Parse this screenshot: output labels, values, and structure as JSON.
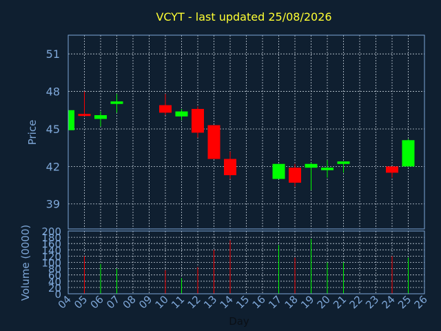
{
  "colors": {
    "background": "#0f1f30",
    "title": "#ffff33",
    "axis_text": "#7ea7d8",
    "frame": "#7ea7d8",
    "grid": "#c8d2dc",
    "up": "#00ff00",
    "down": "#ff0000"
  },
  "chart_data": {
    "type": "candlestick",
    "title": "VCYT - last updated 25/08/2026",
    "price_ylabel": "Price",
    "volume_ylabel": "Volume (0000)",
    "xlabel": "Day",
    "grid": true,
    "x_ticks": [
      "04",
      "05",
      "06",
      "07",
      "08",
      "09",
      "10",
      "11",
      "12",
      "13",
      "14",
      "15",
      "16",
      "17",
      "18",
      "19",
      "20",
      "21",
      "22",
      "23",
      "24",
      "25",
      "26"
    ],
    "price_ylim": [
      37.0,
      52.5
    ],
    "price_yticks": [
      "39",
      "42",
      "45",
      "48",
      "51"
    ],
    "volume_ylim": [
      0,
      200
    ],
    "volume_yticks": [
      "0",
      "20",
      "40",
      "60",
      "80",
      "100",
      "120",
      "140",
      "160",
      "180",
      "200"
    ],
    "candles": [
      {
        "day": "04",
        "open": 44.9,
        "high": 46.5,
        "low": 44.9,
        "close": 46.5,
        "volume": 0
      },
      {
        "day": "05",
        "open": 46.2,
        "high": 48.0,
        "low": 46.1,
        "close": 46.1,
        "volume": 120
      },
      {
        "day": "06",
        "open": 45.8,
        "high": 46.4,
        "low": 45.2,
        "close": 46.1,
        "volume": 95
      },
      {
        "day": "07",
        "open": 47.0,
        "high": 47.8,
        "low": 46.3,
        "close": 47.2,
        "volume": 80
      },
      {
        "day": "10",
        "open": 46.9,
        "high": 47.8,
        "low": 46.1,
        "close": 46.3,
        "volume": 75
      },
      {
        "day": "11",
        "open": 46.0,
        "high": 46.6,
        "low": 45.7,
        "close": 46.4,
        "volume": 50
      },
      {
        "day": "12",
        "open": 46.6,
        "high": 46.8,
        "low": 44.3,
        "close": 44.7,
        "volume": 85
      },
      {
        "day": "13",
        "open": 45.3,
        "high": 45.3,
        "low": 42.6,
        "close": 42.6,
        "volume": 140
      },
      {
        "day": "14",
        "open": 42.6,
        "high": 43.2,
        "low": 41.0,
        "close": 41.3,
        "volume": 170
      },
      {
        "day": "17",
        "open": 41.0,
        "high": 42.2,
        "low": 41.0,
        "close": 42.2,
        "volume": 155
      },
      {
        "day": "18",
        "open": 41.9,
        "high": 42.2,
        "low": 40.4,
        "close": 40.7,
        "volume": 115
      },
      {
        "day": "19",
        "open": 41.9,
        "high": 42.3,
        "low": 40.1,
        "close": 42.2,
        "volume": 175
      },
      {
        "day": "20",
        "open": 41.7,
        "high": 42.5,
        "low": 41.1,
        "close": 41.9,
        "volume": 100
      },
      {
        "day": "21",
        "open": 42.2,
        "high": 42.4,
        "low": 41.5,
        "close": 42.4,
        "volume": 100
      },
      {
        "day": "24",
        "open": 42.0,
        "high": 42.0,
        "low": 41.1,
        "close": 41.5,
        "volume": 120
      },
      {
        "day": "25",
        "open": 42.0,
        "high": 44.2,
        "low": 42.0,
        "close": 44.1,
        "volume": 115
      }
    ]
  }
}
